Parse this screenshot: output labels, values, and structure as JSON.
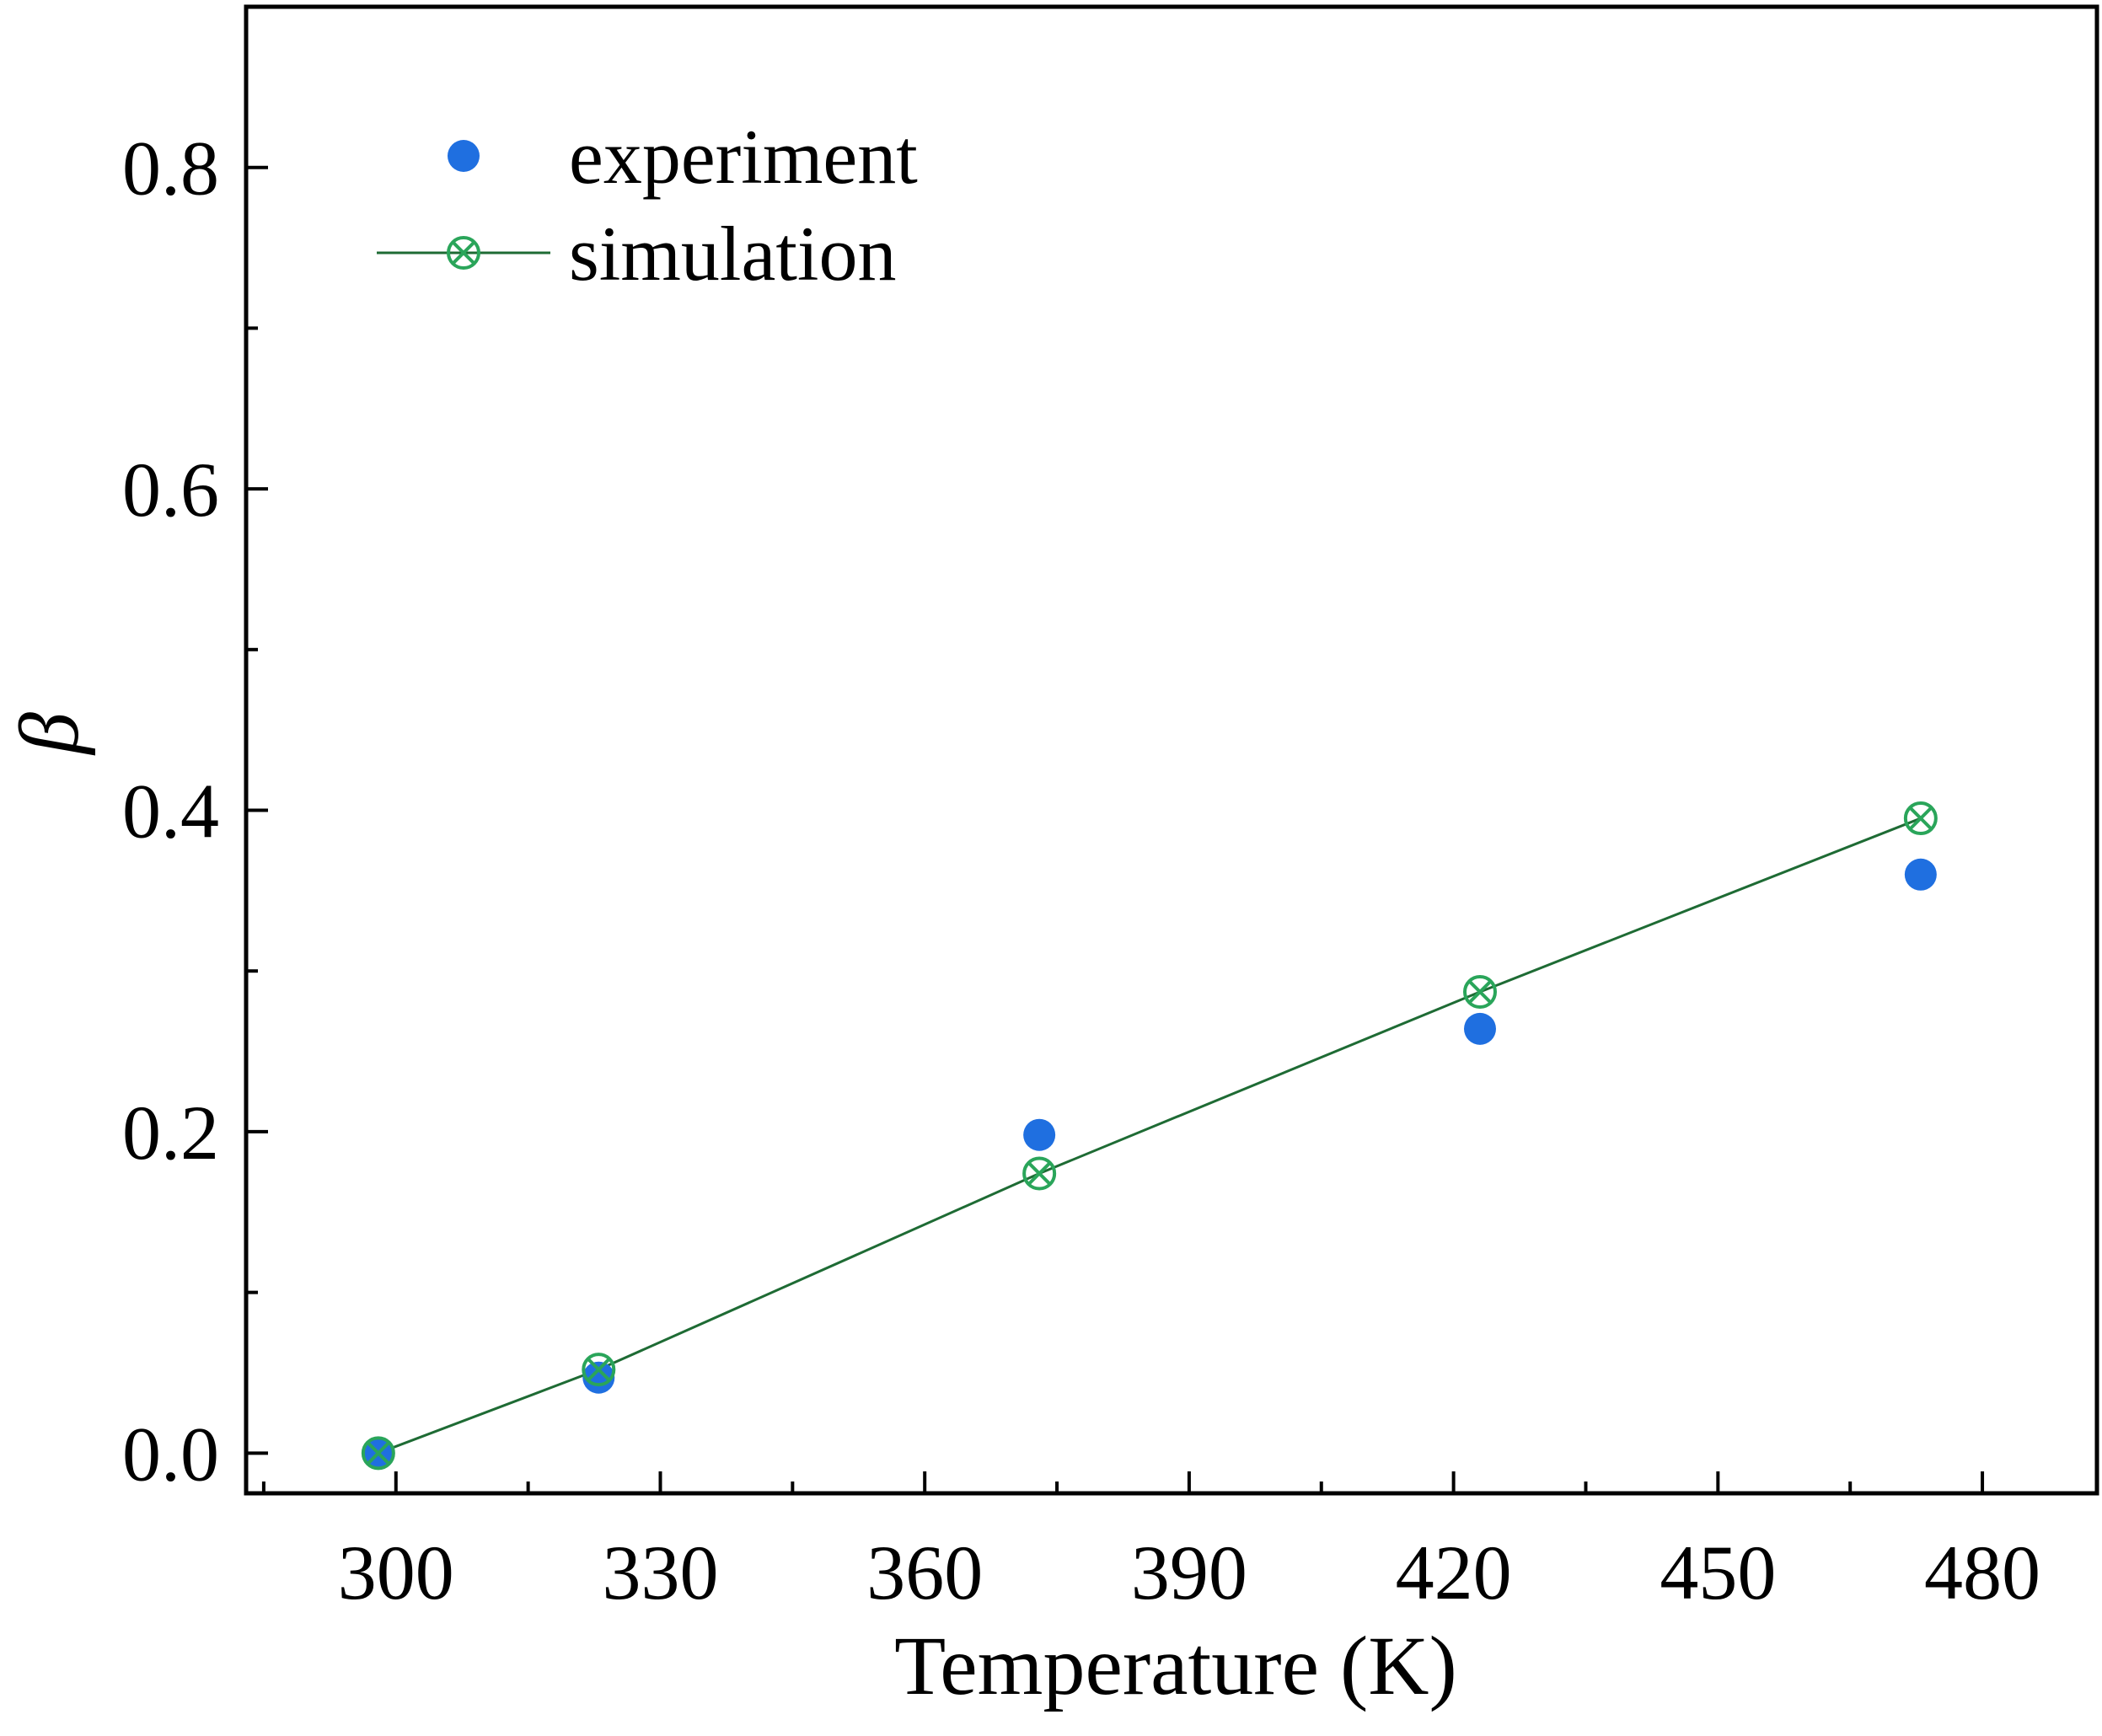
{
  "chart_data": {
    "type": "scatter",
    "xlabel": "Temperature (K)",
    "ylabel": "β",
    "xlim": [
      283,
      493
    ],
    "ylim": [
      -0.025,
      0.9
    ],
    "xticks": [
      300,
      330,
      360,
      390,
      420,
      450,
      480
    ],
    "xtick_labels": [
      "300",
      "330",
      "360",
      "390",
      "420",
      "450",
      "480"
    ],
    "x_minor_ticks": [
      285,
      315,
      345,
      375,
      405,
      435,
      465
    ],
    "yticks": [
      0.0,
      0.2,
      0.4,
      0.6,
      0.8
    ],
    "ytick_labels": [
      "0.0",
      "0.2",
      "0.4",
      "0.6",
      "0.8"
    ],
    "y_minor_ticks": [
      0.1,
      0.3,
      0.5,
      0.7
    ],
    "grid": false,
    "legend_position": "top-left",
    "series": [
      {
        "name": "experiment",
        "marker": "filled-circle",
        "line": false,
        "color": "#1f6fe0",
        "x": [
          298,
          323,
          373,
          423,
          473
        ],
        "y": [
          0.0,
          0.047,
          0.198,
          0.264,
          0.36
        ]
      },
      {
        "name": "simulation",
        "marker": "open-circle-cross",
        "line": true,
        "color": "#2aa55a",
        "line_color": "#1e6b34",
        "x": [
          298,
          323,
          373,
          423,
          473
        ],
        "y": [
          0.0,
          0.052,
          0.174,
          0.287,
          0.395
        ]
      }
    ]
  }
}
